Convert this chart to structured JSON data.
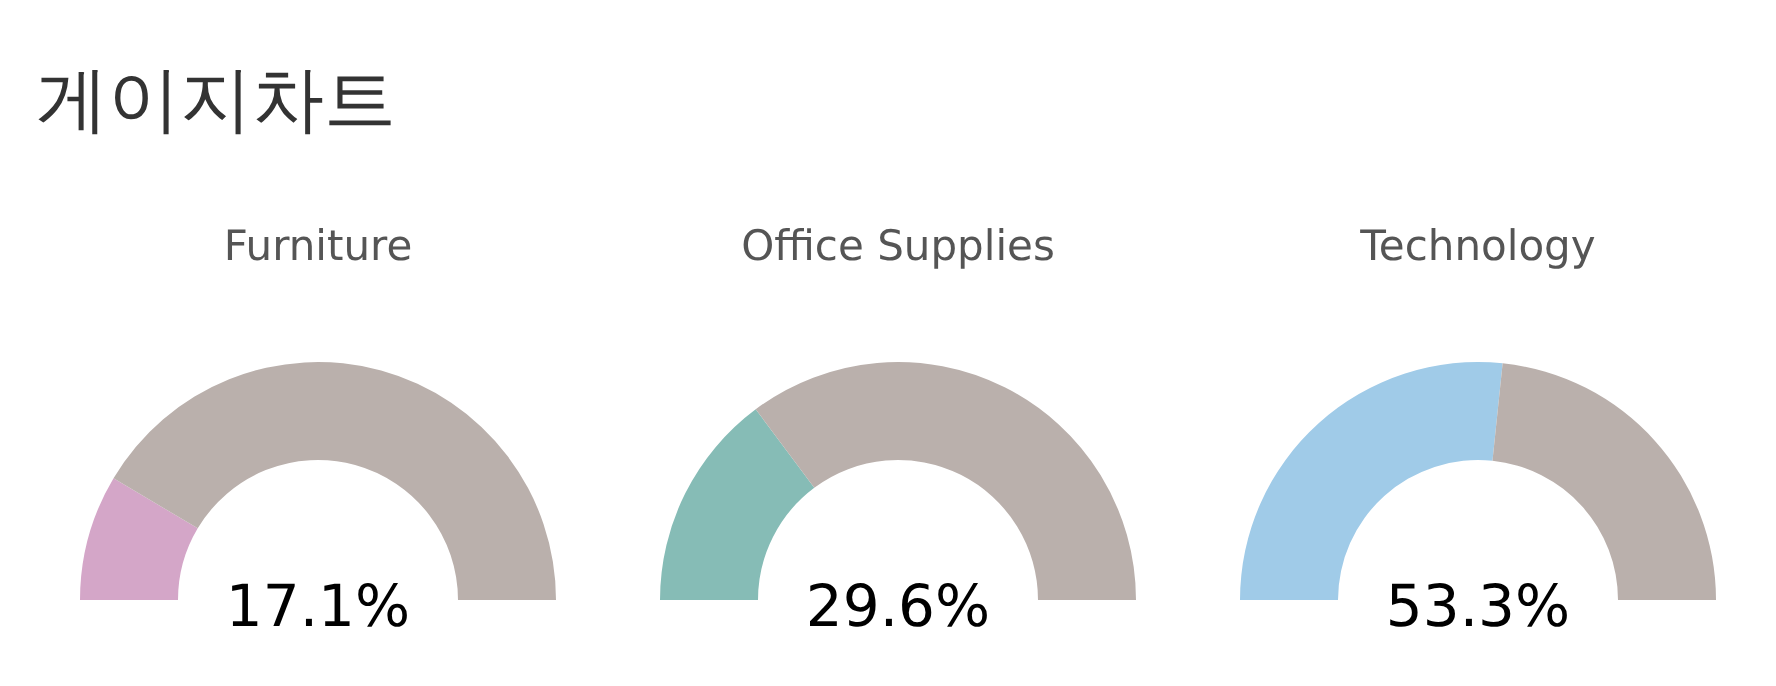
{
  "chart_data": [
    {
      "type": "donut",
      "title": "게이지차트",
      "subtitle": "Furniture",
      "categories": [
        null,
        null
      ],
      "values": [
        17.1,
        82.9
      ],
      "colors": [
        "#d4a6c8",
        "#bab0ac"
      ],
      "annotations": [
        "17.1%"
      ]
    },
    {
      "type": "donut",
      "subtitle": "Office Supplies",
      "categories": [
        null,
        null
      ],
      "values": [
        29.6,
        70.4
      ],
      "colors": [
        "#86bcb6",
        "#bab0ac"
      ],
      "annotations": [
        "29.6%"
      ]
    },
    {
      "type": "donut",
      "subtitle": "Technology",
      "categories": [
        null,
        null
      ],
      "values": [
        53.3,
        46.7
      ],
      "colors": [
        "#a0cbe8",
        "#bab0ac"
      ],
      "annotations": [
        "53.3%"
      ]
    }
  ]
}
